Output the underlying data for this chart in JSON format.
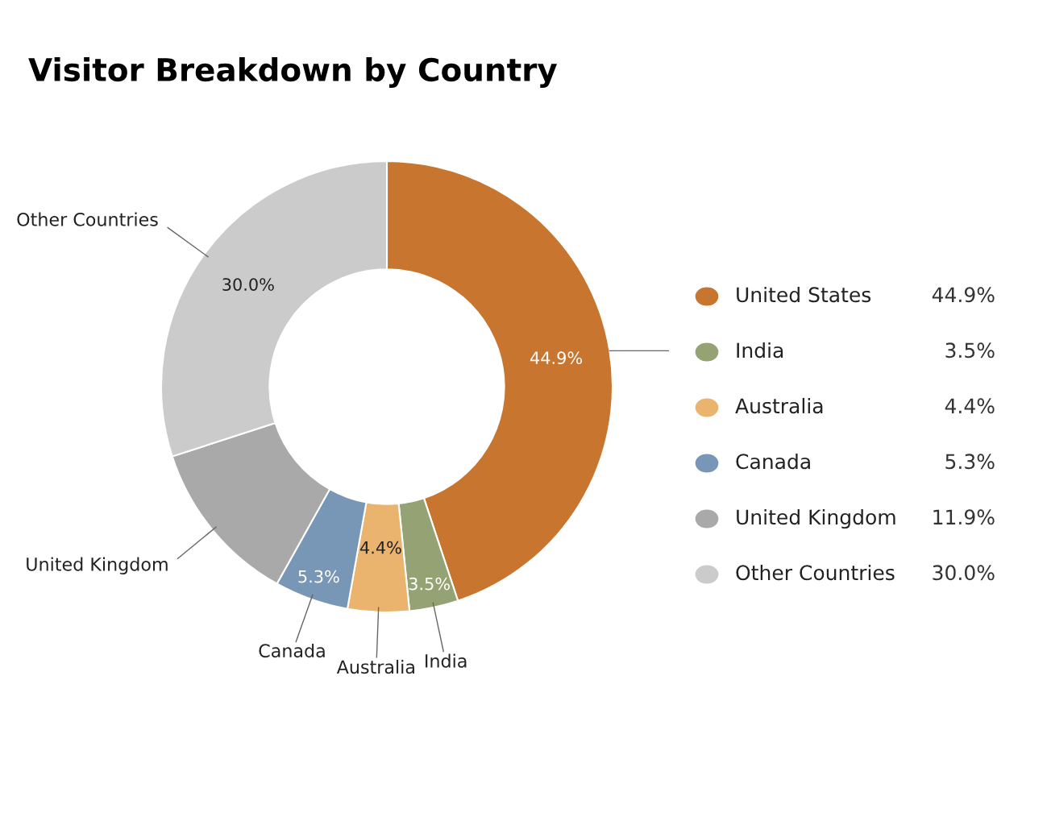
{
  "chart_data": {
    "type": "donut",
    "title": "Visitor Breakdown by Country",
    "categories": [
      "United States",
      "India",
      "Australia",
      "Canada",
      "United Kingdom",
      "Other Countries"
    ],
    "values": [
      44.9,
      3.5,
      4.4,
      5.3,
      11.9,
      30.0
    ],
    "colors": [
      "#c8752f",
      "#95a274",
      "#ebb46e",
      "#7896b5",
      "#a9a9a9",
      "#cbcbcb"
    ],
    "value_labels": [
      "44.9%",
      "3.5%",
      "4.4%",
      "5.3%",
      "11.9%",
      "30.0%"
    ],
    "annotations": [
      {
        "text": "44.9%",
        "x": "United States"
      },
      {
        "text": "3.5%",
        "x": "India"
      },
      {
        "text": "4.4%",
        "x": "Australia"
      },
      {
        "text": "5.3%",
        "x": "Canada"
      },
      {
        "text": "30.0%",
        "x": "Other Countries"
      }
    ],
    "legend": "right"
  }
}
